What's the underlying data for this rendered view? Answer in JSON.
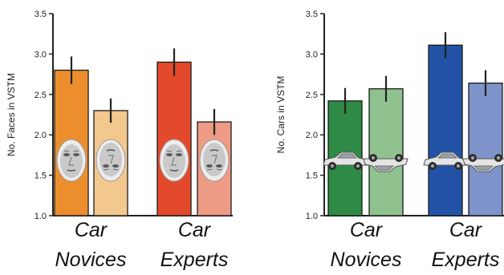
{
  "colors": {
    "face_novice_upright": "#ec8e2e",
    "face_novice_inverted": "#f3c88e",
    "face_expert_upright": "#e34a2c",
    "face_expert_inverted": "#ee9b86",
    "car_novice_upright": "#2f8a45",
    "car_novice_inverted": "#8fc28f",
    "car_expert_upright": "#2152a6",
    "car_expert_inverted": "#7d93c9"
  },
  "chart_data": [
    {
      "type": "bar",
      "stimulus": "face-icon",
      "ylabel": "No. Faces in VSTM",
      "ylim": [
        1.0,
        3.5
      ],
      "yticks": [
        "1.0",
        "1.5",
        "2.0",
        "2.5",
        "3.0",
        "3.5"
      ],
      "groups": [
        {
          "label_line1": "Car",
          "label_line2": "Novices",
          "bars": [
            {
              "orientation": "upright",
              "value": 2.8,
              "error": 0.17,
              "color_key": "face_novice_upright"
            },
            {
              "orientation": "inverted",
              "value": 2.3,
              "error": 0.15,
              "color_key": "face_novice_inverted"
            }
          ]
        },
        {
          "label_line1": "Car",
          "label_line2": "Experts",
          "bars": [
            {
              "orientation": "upright",
              "value": 2.9,
              "error": 0.17,
              "color_key": "face_expert_upright"
            },
            {
              "orientation": "inverted",
              "value": 2.16,
              "error": 0.16,
              "color_key": "face_expert_inverted"
            }
          ]
        }
      ]
    },
    {
      "type": "bar",
      "stimulus": "car-icon",
      "ylabel": "No. Cars in VSTM",
      "ylim": [
        1.0,
        3.5
      ],
      "yticks": [
        "1.0",
        "1.5",
        "2.0",
        "2.5",
        "3.0",
        "3.5"
      ],
      "groups": [
        {
          "label_line1": "Car",
          "label_line2": "Novices",
          "bars": [
            {
              "orientation": "upright",
              "value": 2.42,
              "error": 0.16,
              "color_key": "car_novice_upright"
            },
            {
              "orientation": "inverted",
              "value": 2.57,
              "error": 0.16,
              "color_key": "car_novice_inverted"
            }
          ]
        },
        {
          "label_line1": "Car",
          "label_line2": "Experts",
          "bars": [
            {
              "orientation": "upright",
              "value": 3.11,
              "error": 0.16,
              "color_key": "car_expert_upright"
            },
            {
              "orientation": "inverted",
              "value": 2.64,
              "error": 0.16,
              "color_key": "car_expert_inverted"
            }
          ]
        }
      ]
    }
  ]
}
